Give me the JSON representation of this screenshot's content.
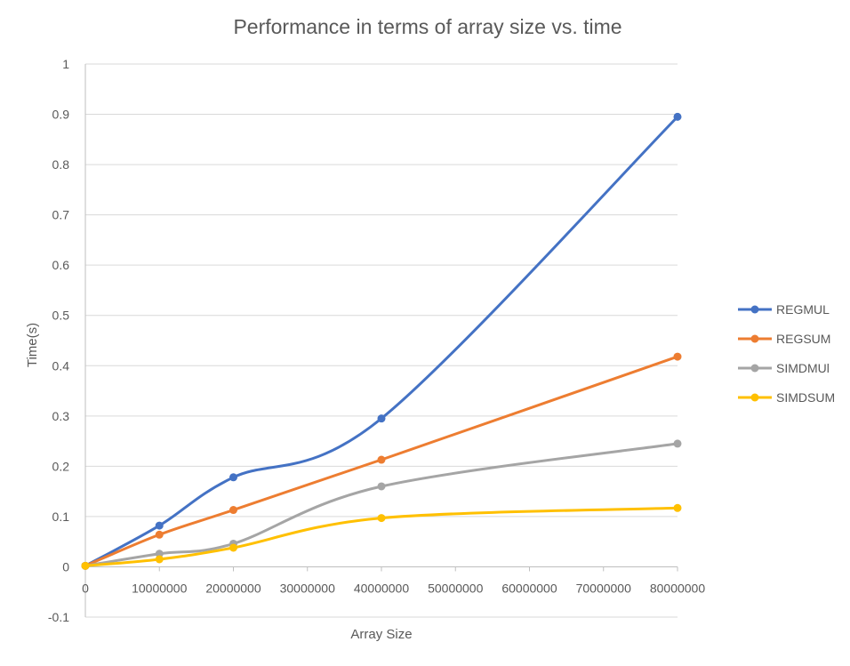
{
  "chart_data": {
    "type": "line",
    "title": "Performance in terms of array size vs. time",
    "xlabel": "Array Size",
    "ylabel": "Time(s)",
    "xlim": [
      0,
      80000000
    ],
    "ylim": [
      -0.1,
      1
    ],
    "x_ticks": [
      "0",
      "10000000",
      "20000000",
      "30000000",
      "40000000",
      "50000000",
      "60000000",
      "70000000",
      "80000000"
    ],
    "y_ticks": [
      "-0.1",
      "0",
      "0.1",
      "0.2",
      "0.3",
      "0.4",
      "0.5",
      "0.6",
      "0.7",
      "0.8",
      "0.9",
      "1"
    ],
    "grid": true,
    "smooth": true,
    "legend_position": "right",
    "x": [
      0,
      10000000,
      20000000,
      40000000,
      80000000
    ],
    "series": [
      {
        "name": "REGMUL",
        "color": "#4472c4",
        "values": [
          0.002,
          0.082,
          0.178,
          0.295,
          0.895
        ]
      },
      {
        "name": "REGSUM",
        "color": "#ed7d31",
        "values": [
          0.002,
          0.064,
          0.113,
          0.213,
          0.418
        ]
      },
      {
        "name": "SIMDMUl",
        "color": "#a5a5a5",
        "values": [
          0.002,
          0.026,
          0.046,
          0.16,
          0.245
        ]
      },
      {
        "name": "SIMDSUM",
        "color": "#ffc000",
        "values": [
          0.002,
          0.015,
          0.038,
          0.097,
          0.117
        ]
      }
    ]
  }
}
